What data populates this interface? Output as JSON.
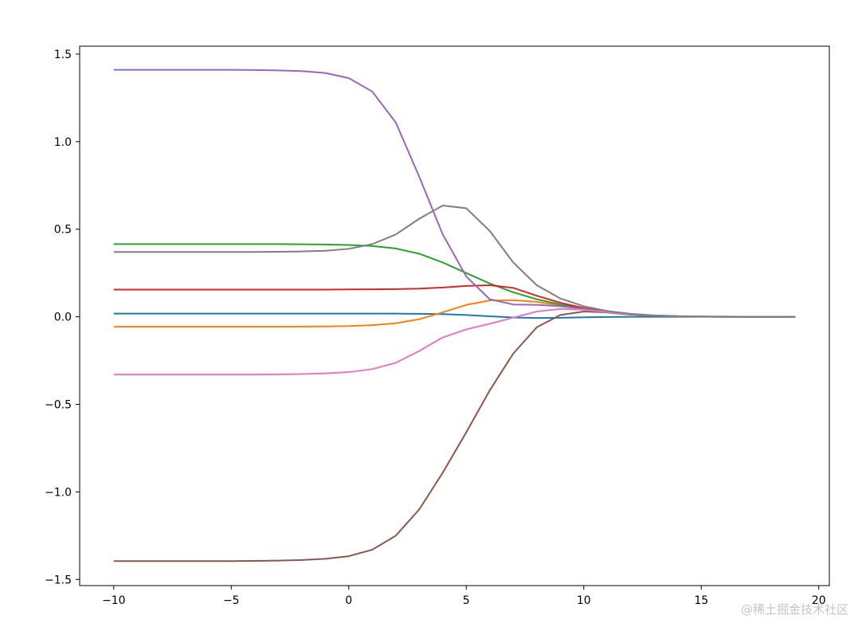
{
  "chart_data": {
    "type": "line",
    "title": "",
    "xlabel": "",
    "ylabel": "",
    "xlim": [
      -11.45,
      20.45
    ],
    "ylim": [
      -1.535,
      1.545
    ],
    "xticks": [
      -10,
      -5,
      0,
      5,
      10,
      15,
      20
    ],
    "xtick_labels": [
      "−10",
      "−5",
      "0",
      "5",
      "10",
      "15",
      "20"
    ],
    "yticks": [
      -1.5,
      -1.0,
      -0.5,
      0.0,
      0.5,
      1.0,
      1.5
    ],
    "ytick_labels": [
      "−1.5",
      "−1.0",
      "−0.5",
      "0.0",
      "0.5",
      "1.0",
      "1.5"
    ],
    "grid": false,
    "legend": "none",
    "x": [
      -10,
      -9,
      -8,
      -7,
      -6,
      -5,
      -4,
      -3,
      -2,
      -1,
      0,
      1,
      2,
      3,
      4,
      5,
      6,
      7,
      8,
      9,
      10,
      11,
      12,
      13,
      14,
      15,
      16,
      17,
      18,
      19
    ],
    "series": [
      {
        "color": "#1f77b4",
        "values": [
          0.018,
          0.018,
          0.018,
          0.018,
          0.018,
          0.018,
          0.018,
          0.018,
          0.018,
          0.018,
          0.018,
          0.018,
          0.018,
          0.017,
          0.015,
          0.01,
          0.003,
          -0.004,
          -0.007,
          -0.006,
          -0.003,
          -0.001,
          0.0,
          0.0,
          0.0,
          0.0,
          0.0,
          0.0,
          0.0,
          0.0
        ]
      },
      {
        "color": "#ff7f0e",
        "values": [
          -0.057,
          -0.057,
          -0.057,
          -0.057,
          -0.057,
          -0.057,
          -0.057,
          -0.057,
          -0.056,
          -0.055,
          -0.053,
          -0.048,
          -0.037,
          -0.014,
          0.025,
          0.068,
          0.093,
          0.095,
          0.085,
          0.065,
          0.042,
          0.024,
          0.012,
          0.006,
          0.003,
          0.001,
          0.001,
          0.0,
          0.0,
          0.0
        ]
      },
      {
        "color": "#2ca02c",
        "values": [
          0.415,
          0.415,
          0.415,
          0.415,
          0.415,
          0.415,
          0.415,
          0.415,
          0.414,
          0.413,
          0.41,
          0.404,
          0.39,
          0.36,
          0.31,
          0.25,
          0.19,
          0.14,
          0.1,
          0.07,
          0.045,
          0.025,
          0.013,
          0.006,
          0.003,
          0.001,
          0.0,
          0.0,
          0.0,
          0.0
        ]
      },
      {
        "color": "#d62728",
        "values": [
          0.155,
          0.155,
          0.155,
          0.155,
          0.155,
          0.155,
          0.155,
          0.155,
          0.155,
          0.155,
          0.156,
          0.157,
          0.158,
          0.161,
          0.167,
          0.176,
          0.18,
          0.165,
          0.12,
          0.08,
          0.05,
          0.028,
          0.015,
          0.007,
          0.003,
          0.001,
          0.0,
          0.0,
          0.0,
          0.0
        ]
      },
      {
        "color": "#9467bd",
        "values": [
          1.41,
          1.41,
          1.41,
          1.41,
          1.41,
          1.41,
          1.409,
          1.407,
          1.403,
          1.392,
          1.363,
          1.286,
          1.11,
          0.8,
          0.47,
          0.23,
          0.1,
          0.07,
          0.068,
          0.06,
          0.045,
          0.028,
          0.015,
          0.007,
          0.003,
          0.001,
          0.0,
          0.0,
          0.0,
          0.0
        ]
      },
      {
        "color": "#8c564b",
        "values": [
          -1.395,
          -1.395,
          -1.395,
          -1.395,
          -1.395,
          -1.395,
          -1.394,
          -1.392,
          -1.389,
          -1.382,
          -1.367,
          -1.33,
          -1.25,
          -1.1,
          -0.89,
          -0.66,
          -0.42,
          -0.21,
          -0.06,
          0.01,
          0.03,
          0.025,
          0.013,
          0.006,
          0.003,
          0.001,
          0.0,
          0.0,
          0.0,
          0.0
        ]
      },
      {
        "color": "#e377c2",
        "values": [
          -0.33,
          -0.33,
          -0.33,
          -0.33,
          -0.33,
          -0.33,
          -0.33,
          -0.329,
          -0.327,
          -0.323,
          -0.316,
          -0.299,
          -0.263,
          -0.195,
          -0.118,
          -0.072,
          -0.04,
          -0.005,
          0.03,
          0.045,
          0.04,
          0.026,
          0.014,
          0.007,
          0.003,
          0.001,
          0.0,
          0.0,
          0.0,
          0.0
        ]
      },
      {
        "color": "#7f7f7f",
        "values": [
          0.37,
          0.37,
          0.37,
          0.37,
          0.37,
          0.37,
          0.37,
          0.371,
          0.373,
          0.377,
          0.388,
          0.415,
          0.47,
          0.56,
          0.635,
          0.62,
          0.49,
          0.31,
          0.18,
          0.105,
          0.06,
          0.033,
          0.017,
          0.008,
          0.004,
          0.002,
          0.001,
          0.0,
          0.0,
          0.0
        ]
      }
    ]
  },
  "watermark": {
    "text": "@稀土掘金技术社区"
  }
}
